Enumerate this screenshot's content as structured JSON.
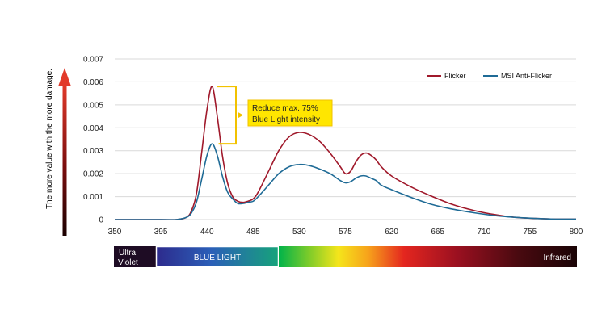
{
  "colors": {
    "flicker": "#a0192b",
    "anti_flicker": "#1f6b96",
    "grid": "#d9d9d9",
    "annotation_fill": "#ffe600",
    "annotation_border": "#f2c200",
    "arrow_red": "#d42a2a",
    "arrow_dark": "#1b0000"
  },
  "side_label": "The more value with the more damage.",
  "annotation": {
    "line1": "Reduce  max. 75%",
    "line2": "Blue Light intensity"
  },
  "band": {
    "ultraviolet_line1": "Ultra",
    "ultraviolet_line2": "Violet",
    "blue_light": "BLUE LIGHT",
    "infrared": "Infrared"
  },
  "chart_data": {
    "type": "line",
    "title": "",
    "xlabel": "",
    "ylabel": "",
    "xlim": [
      350,
      800
    ],
    "ylim": [
      0,
      0.007
    ],
    "xticks": [
      "350",
      "395",
      "440",
      "485",
      "530",
      "575",
      "620",
      "665",
      "710",
      "755",
      "800"
    ],
    "yticks": [
      "0",
      "0.001",
      "0.002",
      "0.003",
      "0.004",
      "0.005",
      "0.006",
      "0.007"
    ],
    "grid": true,
    "legend_position": "top-right",
    "series": [
      {
        "name": "Flicker",
        "color": "#a0192b",
        "x": [
          350,
          395,
          410,
          420,
          425,
          430,
          435,
          440,
          445,
          450,
          455,
          460,
          465,
          470,
          475,
          480,
          485,
          490,
          500,
          510,
          520,
          530,
          540,
          550,
          560,
          570,
          575,
          580,
          585,
          590,
          595,
          600,
          605,
          610,
          620,
          640,
          660,
          680,
          700,
          720,
          740,
          760,
          780,
          800
        ],
        "y": [
          0,
          0,
          0,
          0.0001,
          0.0004,
          0.0012,
          0.003,
          0.0048,
          0.0058,
          0.0045,
          0.0028,
          0.0016,
          0.001,
          0.0008,
          0.00075,
          0.0008,
          0.0009,
          0.0012,
          0.0021,
          0.003,
          0.0036,
          0.0038,
          0.0037,
          0.0034,
          0.0029,
          0.0023,
          0.002,
          0.0021,
          0.0025,
          0.0028,
          0.0029,
          0.0028,
          0.0026,
          0.0023,
          0.0019,
          0.0014,
          0.001,
          0.00065,
          0.0004,
          0.00022,
          0.0001,
          5e-05,
          2e-05,
          2e-05
        ]
      },
      {
        "name": "MSI Anti-Flicker",
        "color": "#1f6b96",
        "x": [
          350,
          395,
          410,
          420,
          425,
          430,
          435,
          440,
          445,
          450,
          455,
          460,
          465,
          470,
          475,
          480,
          485,
          490,
          500,
          510,
          520,
          530,
          540,
          550,
          560,
          570,
          575,
          580,
          585,
          590,
          595,
          600,
          605,
          610,
          620,
          640,
          660,
          680,
          700,
          720,
          740,
          760,
          780,
          800
        ],
        "y": [
          0,
          0,
          0,
          0.0001,
          0.0003,
          0.0008,
          0.0018,
          0.0028,
          0.0033,
          0.0028,
          0.0019,
          0.0012,
          0.0009,
          0.0007,
          0.0007,
          0.00075,
          0.0008,
          0.001,
          0.0015,
          0.002,
          0.0023,
          0.0024,
          0.00235,
          0.0022,
          0.002,
          0.0017,
          0.0016,
          0.00165,
          0.0018,
          0.0019,
          0.0019,
          0.0018,
          0.0017,
          0.0015,
          0.0013,
          0.00095,
          0.00065,
          0.00045,
          0.0003,
          0.00018,
          0.0001,
          5e-05,
          2e-05,
          2e-05
        ]
      }
    ]
  }
}
